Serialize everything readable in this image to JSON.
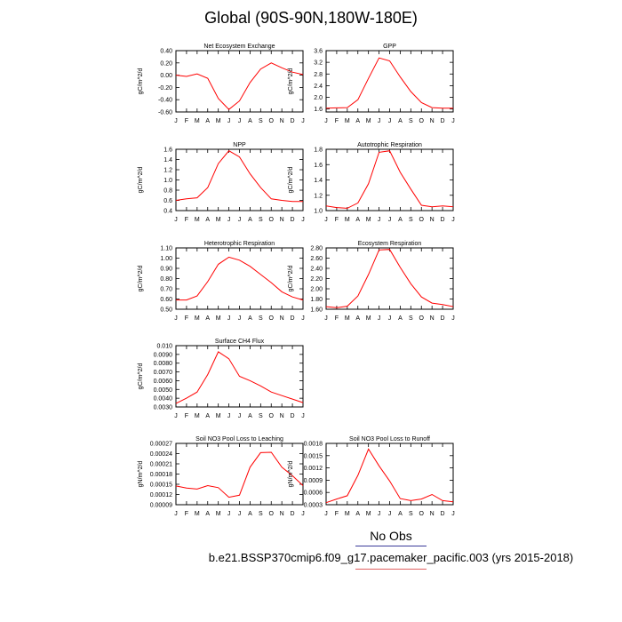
{
  "title": "Global (90S-90N,180W-180E)",
  "footer": {
    "obs_label": "No Obs",
    "case_label": "b.e21.BSSP370cmip6.f09_g17.pacemaker_pacific.003 (yrs 2015-2018)"
  },
  "colors": {
    "line": "#ff0000",
    "axis": "#000000"
  },
  "chart_data": [
    {
      "type": "line",
      "title": "Net Ecosystem Exchange",
      "ylabel": "gC/m^2/d",
      "categories": [
        "J",
        "F",
        "M",
        "A",
        "M",
        "J",
        "J",
        "A",
        "S",
        "O",
        "N",
        "D",
        "J"
      ],
      "ylim": [
        -0.6,
        0.4
      ],
      "yticks": [
        "0.40",
        "0.20",
        "0.00",
        "-0.20",
        "-0.40",
        "-0.60"
      ],
      "ytick_values": [
        0.4,
        0.2,
        0.0,
        -0.2,
        -0.4,
        -0.6
      ],
      "values": [
        0.0,
        -0.02,
        0.02,
        -0.05,
        -0.38,
        -0.56,
        -0.42,
        -0.12,
        0.1,
        0.2,
        0.12,
        0.05,
        0.01
      ]
    },
    {
      "type": "line",
      "title": "GPP",
      "ylabel": "gC/m^2/d",
      "categories": [
        "J",
        "F",
        "M",
        "A",
        "M",
        "J",
        "J",
        "A",
        "S",
        "O",
        "N",
        "D",
        "J"
      ],
      "ylim": [
        1.5,
        3.6
      ],
      "yticks": [
        "3.6",
        "3.2",
        "2.8",
        "2.4",
        "2.0",
        "1.6"
      ],
      "ytick_values": [
        3.6,
        3.2,
        2.8,
        2.4,
        2.0,
        1.6
      ],
      "values": [
        1.63,
        1.64,
        1.65,
        1.92,
        2.65,
        3.35,
        3.25,
        2.7,
        2.2,
        1.82,
        1.65,
        1.63,
        1.63
      ]
    },
    {
      "type": "line",
      "title": "NPP",
      "ylabel": "gC/m^2/d",
      "categories": [
        "J",
        "F",
        "M",
        "A",
        "M",
        "J",
        "J",
        "A",
        "S",
        "O",
        "N",
        "D",
        "J"
      ],
      "ylim": [
        0.4,
        1.6
      ],
      "yticks": [
        "1.6",
        "1.4",
        "1.2",
        "1.0",
        "0.8",
        "0.6",
        "0.4"
      ],
      "ytick_values": [
        1.6,
        1.4,
        1.2,
        1.0,
        0.8,
        0.6,
        0.4
      ],
      "values": [
        0.6,
        0.63,
        0.65,
        0.85,
        1.32,
        1.57,
        1.45,
        1.12,
        0.85,
        0.63,
        0.6,
        0.58,
        0.58
      ]
    },
    {
      "type": "line",
      "title": "Autotrophic Respiration",
      "ylabel": "gC/m^2/d",
      "categories": [
        "J",
        "F",
        "M",
        "A",
        "M",
        "J",
        "J",
        "A",
        "S",
        "O",
        "N",
        "D",
        "J"
      ],
      "ylim": [
        1.0,
        1.8
      ],
      "yticks": [
        "1.8",
        "1.6",
        "1.4",
        "1.2",
        "1.0"
      ],
      "ytick_values": [
        1.8,
        1.6,
        1.4,
        1.2,
        1.0
      ],
      "values": [
        1.06,
        1.04,
        1.03,
        1.1,
        1.35,
        1.76,
        1.78,
        1.5,
        1.28,
        1.07,
        1.05,
        1.06,
        1.05
      ]
    },
    {
      "type": "line",
      "title": "Heterotrophic Respiration",
      "ylabel": "gC/m^2/d",
      "categories": [
        "J",
        "F",
        "M",
        "A",
        "M",
        "J",
        "J",
        "A",
        "S",
        "O",
        "N",
        "D",
        "J"
      ],
      "ylim": [
        0.5,
        1.1
      ],
      "yticks": [
        "1.10",
        "1.00",
        "0.90",
        "0.80",
        "0.70",
        "0.60",
        "0.50"
      ],
      "ytick_values": [
        1.1,
        1.0,
        0.9,
        0.8,
        0.7,
        0.6,
        0.5
      ],
      "values": [
        0.59,
        0.59,
        0.63,
        0.77,
        0.94,
        1.01,
        0.98,
        0.92,
        0.84,
        0.76,
        0.67,
        0.62,
        0.59
      ]
    },
    {
      "type": "line",
      "title": "Ecosystem Respiration",
      "ylabel": "gC/m^2/d",
      "categories": [
        "J",
        "F",
        "M",
        "A",
        "M",
        "J",
        "J",
        "A",
        "S",
        "O",
        "N",
        "D",
        "J"
      ],
      "ylim": [
        1.6,
        2.8
      ],
      "yticks": [
        "2.80",
        "2.60",
        "2.40",
        "2.20",
        "2.00",
        "1.80",
        "1.60"
      ],
      "ytick_values": [
        2.8,
        2.6,
        2.4,
        2.2,
        2.0,
        1.8,
        1.6
      ],
      "values": [
        1.65,
        1.63,
        1.66,
        1.86,
        2.28,
        2.76,
        2.77,
        2.42,
        2.1,
        1.84,
        1.72,
        1.69,
        1.65
      ]
    },
    {
      "type": "line",
      "title": "Surface CH4 Flux",
      "ylabel": "gC/m^2/d",
      "categories": [
        "J",
        "F",
        "M",
        "A",
        "M",
        "J",
        "J",
        "A",
        "S",
        "O",
        "N",
        "D",
        "J"
      ],
      "ylim": [
        0.003,
        0.01
      ],
      "yticks": [
        "0.010",
        "0.0090",
        "0.0080",
        "0.0070",
        "0.0060",
        "0.0050",
        "0.0040",
        "0.0030"
      ],
      "ytick_values": [
        0.01,
        0.009,
        0.008,
        0.007,
        0.006,
        0.005,
        0.004,
        0.003
      ],
      "values": [
        0.0034,
        0.004,
        0.0047,
        0.0067,
        0.0093,
        0.0085,
        0.0065,
        0.006,
        0.0054,
        0.0047,
        0.0043,
        0.0039,
        0.0035
      ]
    },
    {
      "type": "line",
      "title": "Soil NO3 Pool Loss to Leaching",
      "ylabel": "gN/m^2/d",
      "categories": [
        "J",
        "F",
        "M",
        "A",
        "M",
        "J",
        "J",
        "A",
        "S",
        "O",
        "N",
        "D",
        "J"
      ],
      "ylim": [
        9e-05,
        0.00027
      ],
      "yticks": [
        "0.00027",
        "0.00024",
        "0.00021",
        "0.00018",
        "0.00015",
        "0.00012",
        "0.00009"
      ],
      "ytick_values": [
        0.00027,
        0.00024,
        0.00021,
        0.00018,
        0.00015,
        0.00012,
        9e-05
      ],
      "values": [
        0.000145,
        0.000139,
        0.000136,
        0.000146,
        0.00014,
        0.000112,
        0.000118,
        0.0002,
        0.000243,
        0.000244,
        0.0002,
        0.000175,
        0.000146
      ]
    },
    {
      "type": "line",
      "title": "Soil NO3 Pool Loss to Runoff",
      "ylabel": "gN/m^2/d",
      "categories": [
        "J",
        "F",
        "M",
        "A",
        "M",
        "J",
        "J",
        "A",
        "S",
        "O",
        "N",
        "D",
        "J"
      ],
      "ylim": [
        0.0003,
        0.0018
      ],
      "yticks": [
        "0.0018",
        "0.0015",
        "0.0012",
        "0.0009",
        "0.0006",
        "0.0003"
      ],
      "ytick_values": [
        0.0018,
        0.0015,
        0.0012,
        0.0009,
        0.0006,
        0.0003
      ],
      "values": [
        0.00035,
        0.00044,
        0.00052,
        0.00102,
        0.00166,
        0.00125,
        0.00088,
        0.00045,
        0.0004,
        0.00044,
        0.00055,
        0.0004,
        0.00037
      ]
    }
  ]
}
